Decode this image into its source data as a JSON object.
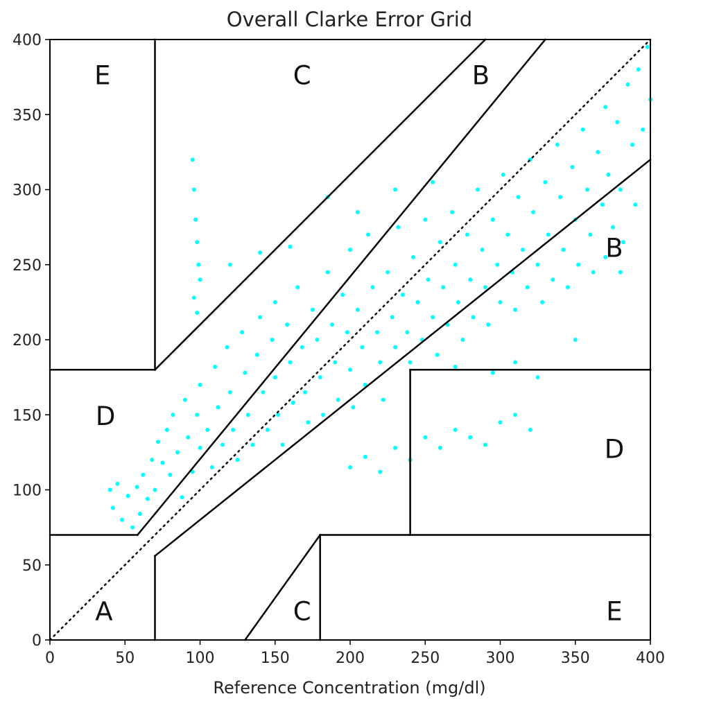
{
  "chart_data": {
    "type": "scatter",
    "title": "Overall Clarke Error Grid",
    "xlabel": "Reference Concentration (mg/dl)",
    "ylabel": "",
    "xlim": [
      0,
      400
    ],
    "ylim": [
      0,
      400
    ],
    "x_ticks": [
      0,
      50,
      100,
      150,
      200,
      250,
      300,
      350,
      400
    ],
    "y_ticks": [
      0,
      50,
      100,
      150,
      200,
      250,
      300,
      350,
      400
    ],
    "x_tick_labels": [
      "0",
      "50",
      "100",
      "150",
      "200",
      "250",
      "300",
      "350",
      "400"
    ],
    "y_tick_labels": [
      "0",
      "50",
      "100",
      "150",
      "200",
      "250",
      "300",
      "350",
      "400"
    ],
    "grid": false,
    "colors": {
      "points": "#00ffff",
      "zone_lines": "#000000",
      "identity_line": "#000000"
    },
    "series": [
      {
        "points": [
          [
            40,
            100
          ],
          [
            42,
            88
          ],
          [
            45,
            104
          ],
          [
            48,
            80
          ],
          [
            52,
            96
          ],
          [
            55,
            75
          ],
          [
            58,
            102
          ],
          [
            60,
            84
          ],
          [
            62,
            110
          ],
          [
            65,
            94
          ],
          [
            68,
            120
          ],
          [
            70,
            100
          ],
          [
            72,
            132
          ],
          [
            75,
            118
          ],
          [
            78,
            140
          ],
          [
            80,
            110
          ],
          [
            82,
            150
          ],
          [
            85,
            125
          ],
          [
            88,
            95
          ],
          [
            90,
            160
          ],
          [
            92,
            135
          ],
          [
            95,
            112
          ],
          [
            98,
            150
          ],
          [
            100,
            128
          ],
          [
            100,
            170
          ],
          [
            105,
            140
          ],
          [
            108,
            115
          ],
          [
            110,
            182
          ],
          [
            112,
            155
          ],
          [
            115,
            130
          ],
          [
            118,
            195
          ],
          [
            120,
            165
          ],
          [
            122,
            140
          ],
          [
            125,
            120
          ],
          [
            128,
            205
          ],
          [
            130,
            178
          ],
          [
            132,
            150
          ],
          [
            135,
            130
          ],
          [
            138,
            190
          ],
          [
            140,
            215
          ],
          [
            142,
            165
          ],
          [
            145,
            140
          ],
          [
            148,
            200
          ],
          [
            150,
            175
          ],
          [
            150,
            225
          ],
          [
            152,
            150
          ],
          [
            155,
            130
          ],
          [
            158,
            210
          ],
          [
            160,
            185
          ],
          [
            162,
            158
          ],
          [
            165,
            235
          ],
          [
            168,
            195
          ],
          [
            170,
            165
          ],
          [
            172,
            145
          ],
          [
            175,
            220
          ],
          [
            178,
            200
          ],
          [
            180,
            175
          ],
          [
            182,
            150
          ],
          [
            185,
            245
          ],
          [
            188,
            210
          ],
          [
            190,
            185
          ],
          [
            192,
            160
          ],
          [
            195,
            230
          ],
          [
            198,
            205
          ],
          [
            200,
            180
          ],
          [
            200,
            260
          ],
          [
            202,
            155
          ],
          [
            205,
            220
          ],
          [
            208,
            195
          ],
          [
            210,
            170
          ],
          [
            212,
            270
          ],
          [
            215,
            235
          ],
          [
            218,
            205
          ],
          [
            220,
            185
          ],
          [
            222,
            160
          ],
          [
            225,
            245
          ],
          [
            228,
            215
          ],
          [
            230,
            195
          ],
          [
            232,
            275
          ],
          [
            235,
            230
          ],
          [
            238,
            205
          ],
          [
            240,
            185
          ],
          [
            242,
            255
          ],
          [
            245,
            225
          ],
          [
            248,
            200
          ],
          [
            250,
            280
          ],
          [
            252,
            240
          ],
          [
            255,
            215
          ],
          [
            258,
            190
          ],
          [
            260,
            265
          ],
          [
            262,
            235
          ],
          [
            265,
            210
          ],
          [
            268,
            285
          ],
          [
            270,
            250
          ],
          [
            272,
            225
          ],
          [
            275,
            200
          ],
          [
            278,
            270
          ],
          [
            280,
            240
          ],
          [
            282,
            215
          ],
          [
            285,
            300
          ],
          [
            288,
            260
          ],
          [
            290,
            235
          ],
          [
            292,
            210
          ],
          [
            295,
            280
          ],
          [
            298,
            250
          ],
          [
            300,
            225
          ],
          [
            302,
            310
          ],
          [
            305,
            270
          ],
          [
            308,
            245
          ],
          [
            310,
            220
          ],
          [
            312,
            295
          ],
          [
            315,
            260
          ],
          [
            318,
            235
          ],
          [
            320,
            320
          ],
          [
            322,
            285
          ],
          [
            325,
            250
          ],
          [
            328,
            225
          ],
          [
            330,
            305
          ],
          [
            332,
            270
          ],
          [
            335,
            240
          ],
          [
            338,
            330
          ],
          [
            340,
            295
          ],
          [
            342,
            260
          ],
          [
            345,
            235
          ],
          [
            348,
            315
          ],
          [
            350,
            280
          ],
          [
            352,
            250
          ],
          [
            355,
            340
          ],
          [
            358,
            300
          ],
          [
            360,
            270
          ],
          [
            362,
            245
          ],
          [
            365,
            325
          ],
          [
            368,
            290
          ],
          [
            370,
            355
          ],
          [
            372,
            310
          ],
          [
            375,
            275
          ],
          [
            378,
            345
          ],
          [
            380,
            300
          ],
          [
            382,
            265
          ],
          [
            385,
            370
          ],
          [
            388,
            330
          ],
          [
            390,
            290
          ],
          [
            392,
            380
          ],
          [
            395,
            340
          ],
          [
            398,
            395
          ],
          [
            400,
            360
          ],
          [
            95,
            320
          ],
          [
            96,
            300
          ],
          [
            97,
            280
          ],
          [
            98,
            265
          ],
          [
            99,
            250
          ],
          [
            100,
            240
          ],
          [
            96,
            228
          ],
          [
            98,
            218
          ],
          [
            120,
            250
          ],
          [
            140,
            258
          ],
          [
            160,
            262
          ],
          [
            185,
            295
          ],
          [
            205,
            285
          ],
          [
            230,
            300
          ],
          [
            255,
            305
          ],
          [
            200,
            115
          ],
          [
            210,
            122
          ],
          [
            220,
            112
          ],
          [
            230,
            128
          ],
          [
            240,
            120
          ],
          [
            250,
            135
          ],
          [
            260,
            128
          ],
          [
            270,
            140
          ],
          [
            280,
            135
          ],
          [
            290,
            130
          ],
          [
            300,
            145
          ],
          [
            310,
            150
          ],
          [
            320,
            140
          ],
          [
            270,
            182
          ],
          [
            295,
            178
          ],
          [
            310,
            185
          ],
          [
            325,
            175
          ],
          [
            350,
            200
          ],
          [
            370,
            255
          ],
          [
            380,
            245
          ]
        ]
      }
    ],
    "identity_line": {
      "from": [
        0,
        0
      ],
      "to": [
        400,
        400
      ],
      "style": "dotted"
    },
    "zone_boundaries": [
      {
        "from": [
          70,
          400
        ],
        "to": [
          70,
          180
        ]
      },
      {
        "from": [
          70,
          180
        ],
        "to": [
          290,
          400
        ]
      },
      {
        "from": [
          70,
          84
        ],
        "to": [
          330,
          400
        ]
      },
      {
        "from": [
          0,
          70
        ],
        "to": [
          58.33,
          70
        ]
      },
      {
        "from": [
          58.33,
          70
        ],
        "to": [
          70,
          84
        ]
      },
      {
        "from": [
          0,
          180
        ],
        "to": [
          70,
          180
        ]
      },
      {
        "from": [
          70,
          56
        ],
        "to": [
          400,
          320
        ]
      },
      {
        "from": [
          70,
          56
        ],
        "to": [
          70,
          0
        ]
      },
      {
        "from": [
          130,
          0
        ],
        "to": [
          180,
          70
        ]
      },
      {
        "from": [
          180,
          70
        ],
        "to": [
          180,
          0
        ]
      },
      {
        "from": [
          180,
          70
        ],
        "to": [
          400,
          70
        ]
      },
      {
        "from": [
          240,
          70
        ],
        "to": [
          240,
          180
        ]
      },
      {
        "from": [
          240,
          180
        ],
        "to": [
          400,
          180
        ]
      }
    ],
    "zone_labels": [
      {
        "text": "E",
        "x": 35,
        "y": 375
      },
      {
        "text": "C",
        "x": 168,
        "y": 375
      },
      {
        "text": "B",
        "x": 287,
        "y": 375
      },
      {
        "text": "B",
        "x": 376,
        "y": 260
      },
      {
        "text": "D",
        "x": 37,
        "y": 148
      },
      {
        "text": "D",
        "x": 376,
        "y": 126
      },
      {
        "text": "A",
        "x": 36,
        "y": 18
      },
      {
        "text": "C",
        "x": 168,
        "y": 18
      },
      {
        "text": "E",
        "x": 376,
        "y": 18
      }
    ]
  }
}
